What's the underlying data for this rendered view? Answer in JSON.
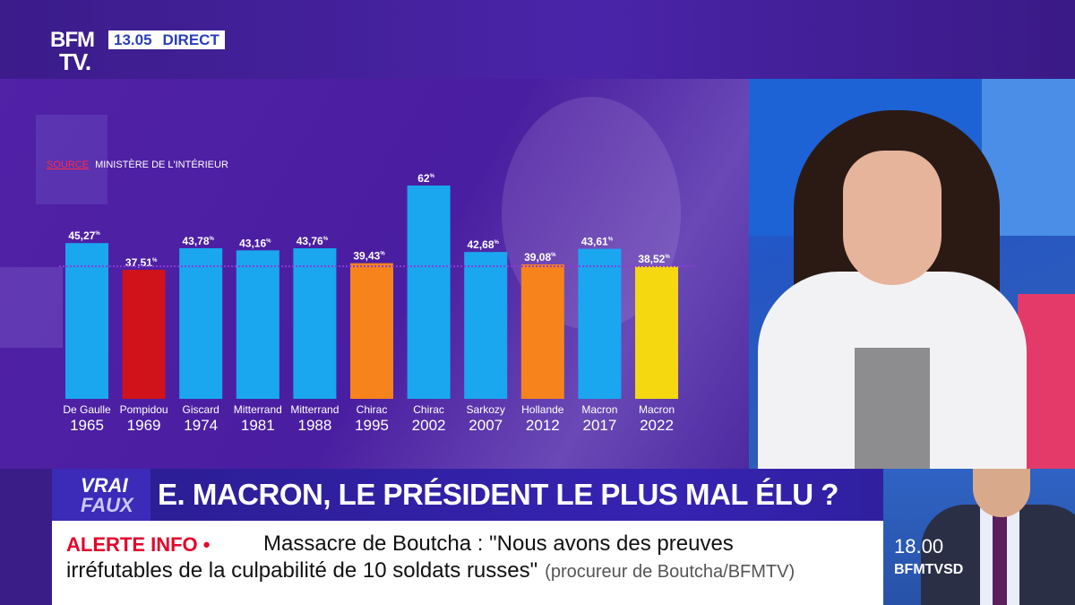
{
  "channel": {
    "logo_top": "BFM",
    "logo_bottom": "TV.",
    "time": "13.05",
    "live_label": "DIRECT"
  },
  "chart_data": {
    "type": "bar",
    "source_label": "SOURCE",
    "source_text": "MINISTÈRE DE L'INTÉRIEUR",
    "categories": [
      {
        "name": "De Gaulle",
        "year": "1965"
      },
      {
        "name": "Pompidou",
        "year": "1969"
      },
      {
        "name": "Giscard",
        "year": "1974"
      },
      {
        "name": "Mitterrand",
        "year": "1981"
      },
      {
        "name": "Mitterrand",
        "year": "1988"
      },
      {
        "name": "Chirac",
        "year": "1995"
      },
      {
        "name": "Chirac",
        "year": "2002"
      },
      {
        "name": "Sarkozy",
        "year": "2007"
      },
      {
        "name": "Hollande",
        "year": "2012"
      },
      {
        "name": "Macron",
        "year": "2017"
      },
      {
        "name": "Macron",
        "year": "2022"
      }
    ],
    "values": [
      45.27,
      37.51,
      43.78,
      43.16,
      43.76,
      39.43,
      62,
      42.68,
      39.08,
      43.61,
      38.52
    ],
    "value_labels": [
      "45,27",
      "37,51",
      "43,78",
      "43,16",
      "43,76",
      "39,43",
      "62",
      "42,68",
      "39,08",
      "43,61",
      "38,52"
    ],
    "unit": "%",
    "colors": [
      "#1aa7f0",
      "#d0121b",
      "#1aa7f0",
      "#1aa7f0",
      "#1aa7f0",
      "#f7831c",
      "#1aa7f0",
      "#1aa7f0",
      "#f7831c",
      "#1aa7f0",
      "#f5d810"
    ],
    "reference_line_value": 38.52,
    "reference_line_color": "#8a3bd6",
    "ylim": [
      0,
      62
    ]
  },
  "banner": {
    "badge_line1": "VRAI",
    "badge_line2": "FAUX",
    "headline": "E. MACRON, LE PRÉSIDENT LE PLUS MAL ÉLU ?"
  },
  "ticker": {
    "label": "ALERTE INFO •",
    "text_line1": "Massacre de Boutcha : \"Nous avons des preuves",
    "text_line2": "irréfutables de la culpabilité de 10 soldats russes\"",
    "source": "(procureur de Boutcha/BFMTV)"
  },
  "next_show": {
    "time": "18.00",
    "name": "BFMTVSD"
  }
}
